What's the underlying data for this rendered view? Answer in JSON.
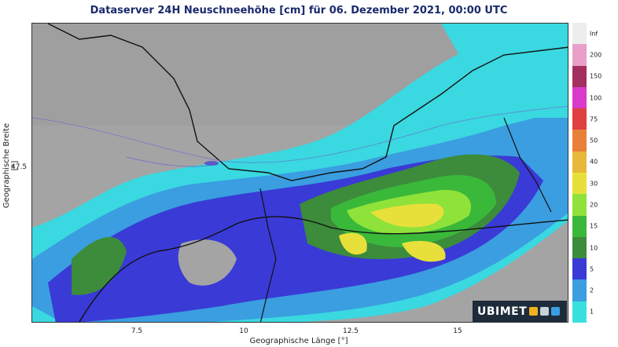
{
  "title": "Dataserver 24H Neuschneehöhe [cm] für 06. Dezember 2021, 00:00 UTC",
  "axes": {
    "xlabel": "Geographische Länge [°]",
    "ylabel": "Geographische Breite [°]",
    "xticks": [
      "7.5",
      "10",
      "12.5",
      "15"
    ],
    "yticks": [
      "47.5"
    ]
  },
  "legend": {
    "labels": [
      "Inf",
      "200",
      "150",
      "100",
      "75",
      "50",
      "40",
      "30",
      "20",
      "15",
      "10",
      "5",
      "2",
      "1"
    ],
    "colors": [
      "#ededed",
      "#e8a0c8",
      "#a3305f",
      "#d93aca",
      "#e04040",
      "#e8803a",
      "#e8b83a",
      "#e8e03a",
      "#8fe23a",
      "#3ab83a",
      "#3c8c3c",
      "#3a3ad6",
      "#3a9ee0",
      "#3ae0e0"
    ]
  },
  "logo": {
    "brand": "UBIMET"
  }
}
